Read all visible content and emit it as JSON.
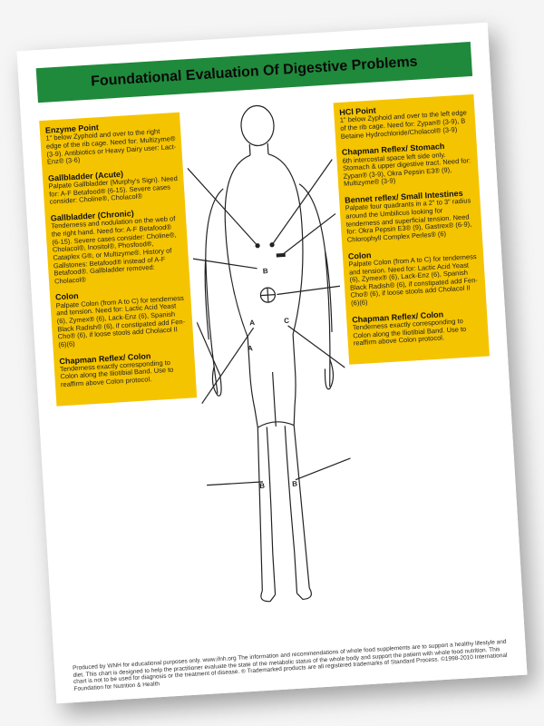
{
  "colors": {
    "title_bg": "#1f8a3b",
    "title_text": "#0a0a0a",
    "column_bg": "#f5c400",
    "page_bg": "#ffffff",
    "body_bg": "#f5f5f5",
    "outline": "#222222"
  },
  "title": "Foundational Evaluation Of Digestive Problems",
  "left_entries": [
    {
      "title": "Enzyme Point",
      "body": "1\" below Zyphoid and over to the right edge of the rib cage. Need for: Multizyme® (3-9). Antibiotics or Heavy Dairy user: Lact-Enz® (3-6)"
    },
    {
      "title": "Gallbladder (Acute)",
      "body": "Palpate Gallbladder (Murphy's Sign). Need for: A-F Betafood® (6-15). Severe cases consider: Choline®, Cholacol®"
    },
    {
      "title": "Gallbladder (Chronic)",
      "body": "Tenderness and nodulation on the web of the right hand. Need for: A-F Betafood® (6-15). Severe cases consider: Choline®, Cholacol®, Inositol®, Phosfood®, Cataplex G®, or Multizyme®. History of Gallstones: Betafood® instead of A-F Betafood®. Gallbladder removed: Cholacol®"
    },
    {
      "title": "Colon",
      "body": "Palpate Colon (from A to C) for tenderness and tension. Need for: Lactic Acid Yeast (6), Zymex® (6), Lack-Enz (6), Spanish Black Radish® (6), if constipated add Fen-Cho® (6), if loose stools add Cholacol II (6)(6)"
    },
    {
      "title": "Chapman Reflex/ Colon",
      "body": "Tenderness exactly corresponding to Colon along the Iliotibial Band. Use to reaffirm above Colon protocol."
    }
  ],
  "right_entries": [
    {
      "title": "HCl Point",
      "body": "1\" below Zyphoid and over to the left edge of the rib cage. Need for: Zypan® (3-9), B Betaine Hydrochloride/Cholacol® (3-9)"
    },
    {
      "title": "Chapman Reflex/ Stomach",
      "body": "6th intercostal space left side only. Stomach & upper digestive tract. Need for: Zypan® (3-9), Okra Pepsin E3® (9), Multizyme® (3-9)"
    },
    {
      "title": "Bennet reflex/ Small Intestines",
      "body": "Palpate four quadrants in a 2\" to 3\" radius around the Umbilicus looking for tenderness and superficial tension. Need for: Okra Pepsin E3® (9), Gastrex® (6-9), Chlorophyll Complex Perles® (6)"
    },
    {
      "title": "Colon",
      "body": "Palpate Colon (from A to C) for tenderness and tension. Need for: Lactic Acid Yeast (6), Zymex® (6), Lack-Enz (6), Spanish Black Radish® (6), if constipated add Fen-Cho® (6), if loose stools add Cholacol II (6)(6)"
    },
    {
      "title": "Chapman Reflex/ Colon",
      "body": "Tenderness exactly corresponding to Colon along the Iliotibial Band. Use to reaffirm above Colon protocol."
    }
  ],
  "labels": {
    "B_upper": "B",
    "A_left": "A",
    "C_right": "C",
    "A_low": "A",
    "B_left_leg": "B",
    "B_right_leg": "B"
  },
  "footnote": "Produced by WNH for educational purposes only.  www.ifnh.org\nThe information and recommendations of whole food supplements are to support a healthy lifestyle and diet. This chart is designed to help the practitioner evaluate the state of the metabolic status of the whole body and support the patient with whole food nutrition. This chart is not to be used for diagnosis or the treatment of disease.\n® Trademarked products are all registered trademarks of Standard Process. ©1998-2010 International Foundation for Nutrition & Health"
}
